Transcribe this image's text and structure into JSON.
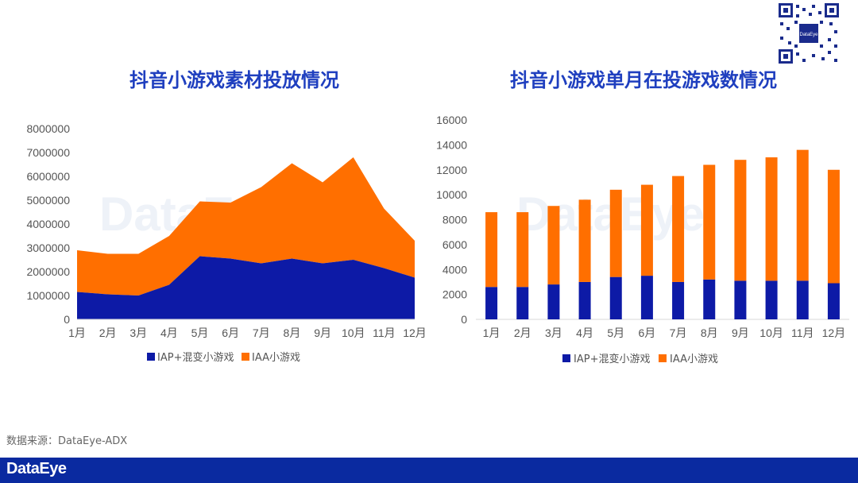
{
  "watermark": "DataEye",
  "source_note": "数据来源：DataEye-ADX",
  "footer": {
    "logo_text": "DataEye"
  },
  "colors": {
    "iap": "#0d1aa6",
    "iaa": "#ff6f00",
    "title": "#1f3fbf",
    "footer": "#0a2aa0"
  },
  "chart_data": [
    {
      "type": "area",
      "stacked": true,
      "title": "抖音小游戏素材投放情况",
      "categories": [
        "1月",
        "2月",
        "3月",
        "4月",
        "5月",
        "6月",
        "7月",
        "8月",
        "9月",
        "10月",
        "11月",
        "12月"
      ],
      "series": [
        {
          "name": "IAP+混变小游戏",
          "color": "#0d1aa6",
          "values": [
            1150000,
            1050000,
            1000000,
            1450000,
            2650000,
            2550000,
            2350000,
            2550000,
            2350000,
            2500000,
            2150000,
            1750000
          ]
        },
        {
          "name": "IAA小游戏",
          "color": "#ff6f00",
          "values": [
            1750000,
            1700000,
            1750000,
            2050000,
            2300000,
            2350000,
            3200000,
            4000000,
            3400000,
            4300000,
            2500000,
            1550000
          ]
        }
      ],
      "ylim": [
        0,
        8000000
      ],
      "yticks": [
        0,
        1000000,
        2000000,
        3000000,
        4000000,
        5000000,
        6000000,
        7000000,
        8000000
      ],
      "legend": "bottom"
    },
    {
      "type": "bar",
      "stacked": true,
      "title": "抖音小游戏单月在投游戏数情况",
      "categories": [
        "1月",
        "2月",
        "3月",
        "4月",
        "5月",
        "6月",
        "7月",
        "8月",
        "9月",
        "10月",
        "11月",
        "12月"
      ],
      "series": [
        {
          "name": "IAP+混变小游戏",
          "color": "#0d1aa6",
          "values": [
            2600,
            2600,
            2800,
            3000,
            3400,
            3500,
            3000,
            3200,
            3100,
            3100,
            3100,
            2900
          ]
        },
        {
          "name": "IAA小游戏",
          "color": "#ff6f00",
          "values": [
            6000,
            6000,
            6300,
            6600,
            7000,
            7300,
            8500,
            9200,
            9700,
            9900,
            10500,
            9100
          ]
        }
      ],
      "ylim": [
        0,
        16000
      ],
      "yticks": [
        0,
        2000,
        4000,
        6000,
        8000,
        10000,
        12000,
        14000,
        16000
      ],
      "legend": "bottom"
    }
  ]
}
